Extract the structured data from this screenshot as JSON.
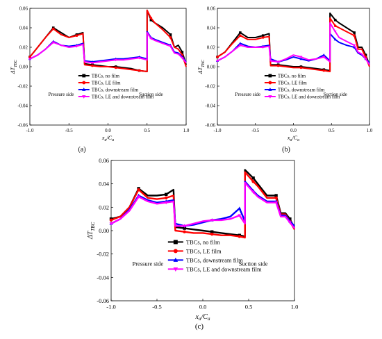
{
  "figure": {
    "panel_labels": [
      "(a)",
      "(b)",
      "(c)"
    ],
    "side_labels": {
      "pressure": "Pressure side",
      "suction": "Suction side"
    }
  },
  "series_colors": [
    "#000000",
    "#ff0000",
    "#0000ff",
    "#ff00ff"
  ],
  "chart_data": [
    {
      "panel": "(a)",
      "type": "line",
      "ylabel": "ΔT_TBC",
      "xlabel": "x_a/C_a",
      "xlim": [
        -1.0,
        1.0
      ],
      "ylim": [
        -0.06,
        0.06
      ],
      "xticks": [
        "-1.0",
        "-0.5",
        "0.0",
        "0.5",
        "1.0"
      ],
      "yticks": [
        "-0.06",
        "-0.04",
        "-0.02",
        "0.00",
        "0.02",
        "0.04",
        "0.06"
      ],
      "legend": {
        "placement": "lower-center"
      },
      "series": [
        {
          "name": "TBCs, no film",
          "marker": "square",
          "x": [
            -1.0,
            -0.9,
            -0.8,
            -0.7,
            -0.6,
            -0.5,
            -0.4,
            -0.32,
            -0.3,
            -0.2,
            -0.1,
            0.0,
            0.1,
            0.2,
            0.3,
            0.4,
            0.5,
            0.5,
            0.55,
            0.6,
            0.7,
            0.8,
            0.85,
            0.9,
            0.95,
            1.0
          ],
          "y": [
            0.01,
            0.02,
            0.03,
            0.04,
            0.035,
            0.03,
            0.033,
            0.035,
            0.003,
            0.002,
            0.001,
            0.0,
            0.0,
            -0.001,
            -0.002,
            -0.004,
            -0.005,
            0.058,
            0.048,
            0.045,
            0.04,
            0.033,
            0.02,
            0.022,
            0.015,
            0.002
          ]
        },
        {
          "name": "TBCs, LE film",
          "marker": "circle",
          "x": [
            -1.0,
            -0.9,
            -0.8,
            -0.7,
            -0.6,
            -0.5,
            -0.4,
            -0.32,
            -0.3,
            -0.2,
            -0.1,
            0.0,
            0.1,
            0.2,
            0.3,
            0.4,
            0.5,
            0.5,
            0.55,
            0.6,
            0.7,
            0.8,
            0.85,
            0.9,
            0.95,
            1.0
          ],
          "y": [
            0.01,
            0.02,
            0.03,
            0.039,
            0.033,
            0.03,
            0.032,
            0.034,
            0.002,
            0.001,
            0.0,
            0.0,
            -0.001,
            -0.002,
            -0.003,
            -0.004,
            -0.005,
            0.058,
            0.05,
            0.045,
            0.038,
            0.03,
            0.02,
            0.018,
            0.012,
            0.0
          ]
        },
        {
          "name": "TBCs, downstream film",
          "marker": "triangle-up",
          "x": [
            -1.0,
            -0.9,
            -0.8,
            -0.7,
            -0.6,
            -0.5,
            -0.4,
            -0.32,
            -0.3,
            -0.2,
            -0.1,
            0.0,
            0.1,
            0.2,
            0.3,
            0.4,
            0.5,
            0.5,
            0.55,
            0.6,
            0.7,
            0.8,
            0.85,
            0.9,
            0.95,
            1.0
          ],
          "y": [
            0.008,
            0.012,
            0.018,
            0.026,
            0.022,
            0.021,
            0.022,
            0.024,
            0.006,
            0.005,
            0.006,
            0.007,
            0.008,
            0.008,
            0.009,
            0.01,
            0.008,
            0.036,
            0.03,
            0.028,
            0.025,
            0.022,
            0.015,
            0.014,
            0.01,
            0.005
          ]
        },
        {
          "name": "TBCs, LE and downstream film",
          "marker": "triangle-down",
          "x": [
            -1.0,
            -0.9,
            -0.8,
            -0.7,
            -0.6,
            -0.5,
            -0.4,
            -0.32,
            -0.3,
            -0.2,
            -0.1,
            0.0,
            0.1,
            0.2,
            0.3,
            0.4,
            0.5,
            0.5,
            0.55,
            0.6,
            0.7,
            0.8,
            0.85,
            0.9,
            0.95,
            1.0
          ],
          "y": [
            0.008,
            0.012,
            0.018,
            0.025,
            0.022,
            0.02,
            0.021,
            0.023,
            0.005,
            0.004,
            0.005,
            0.006,
            0.007,
            0.007,
            0.008,
            0.009,
            0.007,
            0.035,
            0.029,
            0.027,
            0.024,
            0.021,
            0.014,
            0.013,
            0.009,
            0.004
          ]
        }
      ]
    },
    {
      "panel": "(b)",
      "type": "line",
      "ylabel": "ΔT_TBC",
      "xlabel": "x_a/C_a",
      "xlim": [
        -1.0,
        1.0
      ],
      "ylim": [
        -0.06,
        0.06
      ],
      "xticks": [
        "-1.0",
        "-0.5",
        "0.0",
        "0.5",
        "1.0"
      ],
      "yticks": [
        "-0.06",
        "-0.04",
        "-0.02",
        "0.00",
        "0.02",
        "0.04",
        "0.06"
      ],
      "legend": {
        "placement": "lower-center"
      },
      "series": [
        {
          "name": "TBCs, no film",
          "marker": "square",
          "x": [
            -1.0,
            -0.9,
            -0.8,
            -0.7,
            -0.6,
            -0.5,
            -0.4,
            -0.32,
            -0.3,
            -0.2,
            -0.1,
            0.0,
            0.1,
            0.2,
            0.3,
            0.4,
            0.48,
            0.48,
            0.55,
            0.6,
            0.7,
            0.8,
            0.85,
            0.9,
            0.95,
            1.0
          ],
          "y": [
            0.01,
            0.015,
            0.025,
            0.035,
            0.03,
            0.03,
            0.032,
            0.034,
            0.002,
            0.002,
            0.001,
            0.0,
            0.0,
            -0.001,
            -0.002,
            -0.003,
            -0.004,
            0.055,
            0.048,
            0.045,
            0.04,
            0.035,
            0.02,
            0.02,
            0.012,
            0.002
          ]
        },
        {
          "name": "TBCs, LE film",
          "marker": "circle",
          "x": [
            -1.0,
            -0.9,
            -0.8,
            -0.7,
            -0.6,
            -0.5,
            -0.4,
            -0.32,
            -0.3,
            -0.2,
            -0.1,
            0.0,
            0.1,
            0.2,
            0.3,
            0.4,
            0.48,
            0.48,
            0.55,
            0.6,
            0.7,
            0.8,
            0.85,
            0.9,
            0.95,
            1.0
          ],
          "y": [
            0.01,
            0.015,
            0.024,
            0.032,
            0.028,
            0.028,
            0.03,
            0.031,
            0.001,
            0.001,
            0.0,
            -0.001,
            -0.001,
            -0.002,
            -0.003,
            -0.004,
            -0.005,
            0.05,
            0.042,
            0.04,
            0.036,
            0.032,
            0.018,
            0.018,
            0.01,
            0.0
          ]
        },
        {
          "name": "TBCs, downstream film",
          "marker": "triangle-up",
          "x": [
            -1.0,
            -0.9,
            -0.8,
            -0.7,
            -0.6,
            -0.5,
            -0.4,
            -0.32,
            -0.3,
            -0.2,
            -0.1,
            0.0,
            0.1,
            0.2,
            0.3,
            0.4,
            0.48,
            0.48,
            0.55,
            0.6,
            0.7,
            0.8,
            0.85,
            0.9,
            0.95,
            1.0
          ],
          "y": [
            0.006,
            0.01,
            0.016,
            0.024,
            0.021,
            0.02,
            0.021,
            0.022,
            0.008,
            0.005,
            0.007,
            0.01,
            0.008,
            0.006,
            0.008,
            0.012,
            0.006,
            0.034,
            0.028,
            0.025,
            0.022,
            0.02,
            0.014,
            0.012,
            0.008,
            0.004
          ]
        },
        {
          "name": "TBCs, LE and downstream film",
          "marker": "triangle-down",
          "x": [
            -1.0,
            -0.9,
            -0.8,
            -0.7,
            -0.6,
            -0.5,
            -0.4,
            -0.32,
            -0.3,
            -0.2,
            -0.1,
            0.0,
            0.1,
            0.2,
            0.3,
            0.4,
            0.48,
            0.48,
            0.55,
            0.6,
            0.7,
            0.8,
            0.85,
            0.9,
            0.95,
            1.0
          ],
          "y": [
            0.006,
            0.01,
            0.016,
            0.022,
            0.02,
            0.02,
            0.02,
            0.021,
            0.006,
            0.005,
            0.008,
            0.012,
            0.01,
            0.007,
            0.008,
            0.01,
            0.005,
            0.045,
            0.036,
            0.03,
            0.026,
            0.022,
            0.015,
            0.013,
            0.008,
            0.002
          ]
        }
      ]
    },
    {
      "panel": "(c)",
      "type": "line",
      "ylabel": "ΔT_TBC",
      "xlabel": "x_a/C_a",
      "xlim": [
        -1.0,
        1.0
      ],
      "ylim": [
        -0.06,
        0.06
      ],
      "xticks": [
        "-1.0",
        "-0.5",
        "0.0",
        "0.5",
        "1.0"
      ],
      "yticks": [
        "-0.06",
        "-0.04",
        "-0.02",
        "0.00",
        "0.02",
        "0.04",
        "0.06"
      ],
      "legend": {
        "placement": "lower-center"
      },
      "series": [
        {
          "name": "TBCs, no film",
          "marker": "square",
          "x": [
            -1.0,
            -0.9,
            -0.8,
            -0.7,
            -0.6,
            -0.5,
            -0.4,
            -0.32,
            -0.3,
            -0.2,
            -0.1,
            0.0,
            0.1,
            0.2,
            0.3,
            0.4,
            0.46,
            0.46,
            0.55,
            0.6,
            0.7,
            0.8,
            0.85,
            0.9,
            0.95,
            1.0
          ],
          "y": [
            0.01,
            0.012,
            0.02,
            0.036,
            0.03,
            0.03,
            0.031,
            0.035,
            0.003,
            0.002,
            0.001,
            0.0,
            -0.001,
            -0.002,
            -0.003,
            -0.004,
            -0.005,
            0.052,
            0.045,
            0.04,
            0.03,
            0.03,
            0.015,
            0.015,
            0.01,
            0.002
          ]
        },
        {
          "name": "TBCs, LE film",
          "marker": "circle",
          "x": [
            -1.0,
            -0.9,
            -0.8,
            -0.7,
            -0.6,
            -0.5,
            -0.4,
            -0.32,
            -0.3,
            -0.2,
            -0.1,
            0.0,
            0.1,
            0.2,
            0.3,
            0.4,
            0.46,
            0.46,
            0.55,
            0.6,
            0.7,
            0.8,
            0.85,
            0.9,
            0.95,
            1.0
          ],
          "y": [
            0.009,
            0.012,
            0.02,
            0.035,
            0.028,
            0.027,
            0.028,
            0.03,
            0.0,
            -0.001,
            -0.002,
            -0.002,
            -0.003,
            -0.004,
            -0.004,
            -0.005,
            -0.006,
            0.05,
            0.042,
            0.038,
            0.028,
            0.028,
            0.014,
            0.014,
            0.008,
            0.001
          ]
        },
        {
          "name": "TBCs, downstream film",
          "marker": "triangle-up",
          "x": [
            -1.0,
            -0.9,
            -0.8,
            -0.7,
            -0.6,
            -0.5,
            -0.4,
            -0.32,
            -0.3,
            -0.2,
            -0.1,
            0.0,
            0.1,
            0.2,
            0.3,
            0.4,
            0.46,
            0.46,
            0.55,
            0.6,
            0.7,
            0.8,
            0.85,
            0.9,
            0.95,
            1.0
          ],
          "y": [
            0.006,
            0.01,
            0.018,
            0.03,
            0.026,
            0.024,
            0.025,
            0.026,
            0.006,
            0.004,
            0.005,
            0.007,
            0.009,
            0.01,
            0.012,
            0.019,
            0.008,
            0.042,
            0.034,
            0.03,
            0.025,
            0.025,
            0.013,
            0.013,
            0.008,
            0.004
          ]
        },
        {
          "name": "TBCs, LE and downstream film",
          "marker": "triangle-down",
          "x": [
            -1.0,
            -0.9,
            -0.8,
            -0.7,
            -0.6,
            -0.5,
            -0.4,
            -0.32,
            -0.3,
            -0.2,
            -0.1,
            0.0,
            0.1,
            0.2,
            0.3,
            0.4,
            0.46,
            0.46,
            0.55,
            0.6,
            0.7,
            0.8,
            0.85,
            0.9,
            0.95,
            1.0
          ],
          "y": [
            0.006,
            0.01,
            0.017,
            0.029,
            0.025,
            0.023,
            0.024,
            0.025,
            0.004,
            0.004,
            0.006,
            0.008,
            0.009,
            0.009,
            0.01,
            0.013,
            0.006,
            0.041,
            0.033,
            0.029,
            0.024,
            0.024,
            0.012,
            0.012,
            0.007,
            0.002
          ]
        }
      ]
    }
  ]
}
